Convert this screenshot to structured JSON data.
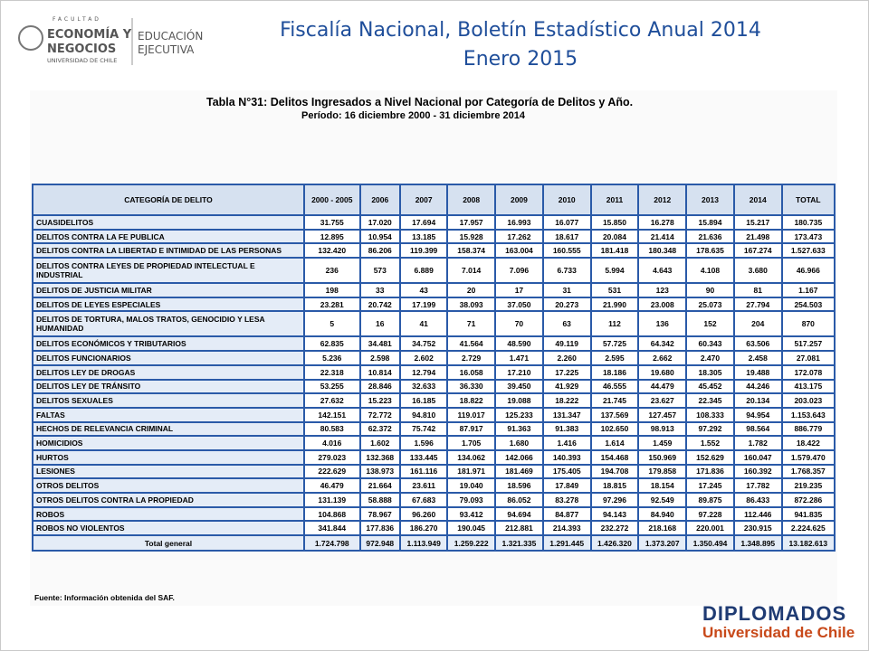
{
  "header": {
    "logo": {
      "faculty": "FACULTAD",
      "line1": "ECONOMÍA Y",
      "line2": "NEGOCIOS",
      "university": "UNIVERSIDAD DE CHILE",
      "unit1": "EDUCACIÓN",
      "unit2": "EJECUTIVA"
    },
    "title": "Fiscalía Nacional, Boletín Estadístico Anual 2014",
    "subtitle": "Enero 2015"
  },
  "table": {
    "title": "Tabla N°31:  Delitos Ingresados a Nivel Nacional por Categoría de Delitos y Año.",
    "period": "Período:  16 diciembre 2000 - 31 diciembre 2014",
    "columns": [
      "CATEGORÍA DE DELITO",
      "2000 - 2005",
      "2006",
      "2007",
      "2008",
      "2009",
      "2010",
      "2011",
      "2012",
      "2013",
      "2014",
      "TOTAL"
    ],
    "rows": [
      [
        "CUASIDELITOS",
        "31.755",
        "17.020",
        "17.694",
        "17.957",
        "16.993",
        "16.077",
        "15.850",
        "16.278",
        "15.894",
        "15.217",
        "180.735"
      ],
      [
        "DELITOS CONTRA LA FE PUBLICA",
        "12.895",
        "10.954",
        "13.185",
        "15.928",
        "17.262",
        "18.617",
        "20.084",
        "21.414",
        "21.636",
        "21.498",
        "173.473"
      ],
      [
        "DELITOS CONTRA LA LIBERTAD E INTIMIDAD DE LAS PERSONAS",
        "132.420",
        "86.206",
        "119.399",
        "158.374",
        "163.004",
        "160.555",
        "181.418",
        "180.348",
        "178.635",
        "167.274",
        "1.527.633"
      ],
      [
        "DELITOS CONTRA LEYES DE PROPIEDAD INTELECTUAL E INDUSTRIAL",
        "236",
        "573",
        "6.889",
        "7.014",
        "7.096",
        "6.733",
        "5.994",
        "4.643",
        "4.108",
        "3.680",
        "46.966"
      ],
      [
        "DELITOS DE JUSTICIA MILITAR",
        "198",
        "33",
        "43",
        "20",
        "17",
        "31",
        "531",
        "123",
        "90",
        "81",
        "1.167"
      ],
      [
        "DELITOS DE LEYES ESPECIALES",
        "23.281",
        "20.742",
        "17.199",
        "38.093",
        "37.050",
        "20.273",
        "21.990",
        "23.008",
        "25.073",
        "27.794",
        "254.503"
      ],
      [
        "DELITOS DE TORTURA, MALOS TRATOS, GENOCIDIO Y LESA HUMANIDAD",
        "5",
        "16",
        "41",
        "71",
        "70",
        "63",
        "112",
        "136",
        "152",
        "204",
        "870"
      ],
      [
        "DELITOS ECONÓMICOS Y TRIBUTARIOS",
        "62.835",
        "34.481",
        "34.752",
        "41.564",
        "48.590",
        "49.119",
        "57.725",
        "64.342",
        "60.343",
        "63.506",
        "517.257"
      ],
      [
        "DELITOS FUNCIONARIOS",
        "5.236",
        "2.598",
        "2.602",
        "2.729",
        "1.471",
        "2.260",
        "2.595",
        "2.662",
        "2.470",
        "2.458",
        "27.081"
      ],
      [
        "DELITOS LEY DE DROGAS",
        "22.318",
        "10.814",
        "12.794",
        "16.058",
        "17.210",
        "17.225",
        "18.186",
        "19.680",
        "18.305",
        "19.488",
        "172.078"
      ],
      [
        "DELITOS LEY DE TRÁNSITO",
        "53.255",
        "28.846",
        "32.633",
        "36.330",
        "39.450",
        "41.929",
        "46.555",
        "44.479",
        "45.452",
        "44.246",
        "413.175"
      ],
      [
        "DELITOS SEXUALES",
        "27.632",
        "15.223",
        "16.185",
        "18.822",
        "19.088",
        "18.222",
        "21.745",
        "23.627",
        "22.345",
        "20.134",
        "203.023"
      ],
      [
        "FALTAS",
        "142.151",
        "72.772",
        "94.810",
        "119.017",
        "125.233",
        "131.347",
        "137.569",
        "127.457",
        "108.333",
        "94.954",
        "1.153.643"
      ],
      [
        "HECHOS DE RELEVANCIA CRIMINAL",
        "80.583",
        "62.372",
        "75.742",
        "87.917",
        "91.363",
        "91.383",
        "102.650",
        "98.913",
        "97.292",
        "98.564",
        "886.779"
      ],
      [
        "HOMICIDIOS",
        "4.016",
        "1.602",
        "1.596",
        "1.705",
        "1.680",
        "1.416",
        "1.614",
        "1.459",
        "1.552",
        "1.782",
        "18.422"
      ],
      [
        "HURTOS",
        "279.023",
        "132.368",
        "133.445",
        "134.062",
        "142.066",
        "140.393",
        "154.468",
        "150.969",
        "152.629",
        "160.047",
        "1.579.470"
      ],
      [
        "LESIONES",
        "222.629",
        "138.973",
        "161.116",
        "181.971",
        "181.469",
        "175.405",
        "194.708",
        "179.858",
        "171.836",
        "160.392",
        "1.768.357"
      ],
      [
        "OTROS DELITOS",
        "46.479",
        "21.664",
        "23.611",
        "19.040",
        "18.596",
        "17.849",
        "18.815",
        "18.154",
        "17.245",
        "17.782",
        "219.235"
      ],
      [
        "OTROS DELITOS CONTRA LA PROPIEDAD",
        "131.139",
        "58.888",
        "67.683",
        "79.093",
        "86.052",
        "83.278",
        "97.296",
        "92.549",
        "89.875",
        "86.433",
        "872.286"
      ],
      [
        "ROBOS",
        "104.868",
        "78.967",
        "96.260",
        "93.412",
        "94.694",
        "84.877",
        "94.143",
        "84.940",
        "97.228",
        "112.446",
        "941.835"
      ],
      [
        "ROBOS NO VIOLENTOS",
        "341.844",
        "177.836",
        "186.270",
        "190.045",
        "212.881",
        "214.393",
        "232.272",
        "218.168",
        "220.001",
        "230.915",
        "2.224.625"
      ]
    ],
    "total": [
      "Total general",
      "1.724.798",
      "972.948",
      "1.113.949",
      "1.259.222",
      "1.321.335",
      "1.291.445",
      "1.426.320",
      "1.373.207",
      "1.350.494",
      "1.348.895",
      "13.182.613"
    ],
    "source": "Fuente: Información obtenida del SAF."
  },
  "footer": {
    "brand": "DIPLOMADOS",
    "university": "Universidad de Chile"
  }
}
